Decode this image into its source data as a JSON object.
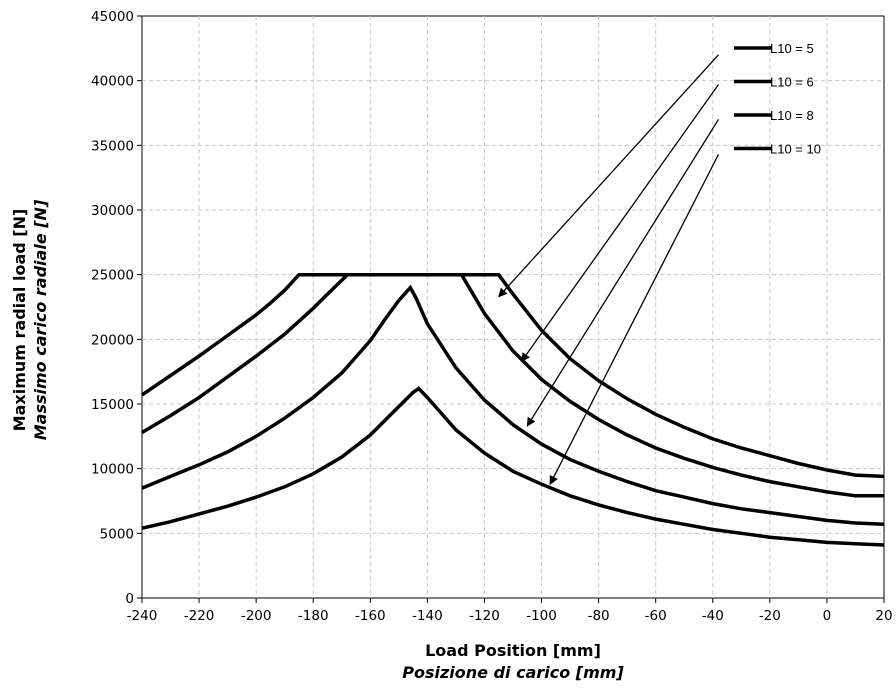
{
  "chart_data": {
    "type": "line",
    "title": "",
    "xlabel": "Load Position [mm]",
    "xlabel_secondary": "Posizione di carico [mm]",
    "ylabel": "Maximum radial load [N]",
    "ylabel_secondary": "Massimo carico radiale [N]",
    "xlim": [
      -240,
      20
    ],
    "ylim": [
      0,
      45000
    ],
    "x_ticks": [
      -240,
      -220,
      -200,
      -180,
      -160,
      -140,
      -120,
      -100,
      -80,
      -60,
      -40,
      -20,
      0,
      20
    ],
    "y_ticks": [
      0,
      5000,
      10000,
      15000,
      20000,
      25000,
      30000,
      35000,
      40000,
      45000
    ],
    "grid": true,
    "legend_position": "top-right",
    "line_color": "#000000",
    "series": [
      {
        "name": "L10 = 5",
        "x": [
          -240,
          -230,
          -220,
          -210,
          -200,
          -195,
          -190,
          -185,
          -170,
          -160,
          -150,
          -140,
          -130,
          -120,
          -115,
          -110,
          -100,
          -90,
          -80,
          -70,
          -60,
          -50,
          -40,
          -30,
          -20,
          -10,
          0,
          10,
          20
        ],
        "y": [
          15700,
          17200,
          18700,
          20300,
          21900,
          22800,
          23800,
          25000,
          25000,
          25000,
          25000,
          25000,
          25000,
          25000,
          25000,
          23500,
          20700,
          18500,
          16800,
          15400,
          14200,
          13200,
          12300,
          11600,
          11000,
          10400,
          9900,
          9500,
          9400
        ]
      },
      {
        "name": "L10 = 6",
        "x": [
          -240,
          -230,
          -220,
          -210,
          -200,
          -190,
          -180,
          -175,
          -168,
          -160,
          -150,
          -140,
          -130,
          -128,
          -120,
          -110,
          -100,
          -90,
          -80,
          -70,
          -60,
          -50,
          -40,
          -30,
          -20,
          -10,
          0,
          10,
          20
        ],
        "y": [
          12800,
          14100,
          15500,
          17100,
          18700,
          20400,
          22400,
          23500,
          25000,
          25000,
          25000,
          25000,
          25000,
          25000,
          22000,
          19100,
          16900,
          15200,
          13800,
          12600,
          11600,
          10800,
          10100,
          9500,
          9000,
          8600,
          8200,
          7900,
          7900
        ]
      },
      {
        "name": "L10 = 8",
        "x": [
          -240,
          -230,
          -220,
          -210,
          -200,
          -190,
          -180,
          -170,
          -160,
          -155,
          -150,
          -146,
          -144,
          -140,
          -130,
          -120,
          -110,
          -100,
          -90,
          -80,
          -70,
          -60,
          -50,
          -40,
          -30,
          -20,
          -10,
          0,
          10,
          20
        ],
        "y": [
          8500,
          9400,
          10300,
          11300,
          12500,
          13900,
          15500,
          17400,
          19900,
          21500,
          23000,
          24000,
          23200,
          21200,
          17800,
          15300,
          13400,
          11900,
          10700,
          9800,
          9000,
          8300,
          7800,
          7300,
          6900,
          6600,
          6300,
          6000,
          5800,
          5700
        ]
      },
      {
        "name": "L10 = 10",
        "x": [
          -240,
          -230,
          -220,
          -210,
          -200,
          -190,
          -180,
          -170,
          -160,
          -155,
          -150,
          -145,
          -143,
          -140,
          -130,
          -120,
          -110,
          -100,
          -90,
          -80,
          -70,
          -60,
          -50,
          -40,
          -30,
          -20,
          -10,
          0,
          10,
          20
        ],
        "y": [
          5400,
          5900,
          6500,
          7100,
          7800,
          8600,
          9600,
          10900,
          12600,
          13700,
          14800,
          15900,
          16200,
          15500,
          13000,
          11200,
          9800,
          8800,
          7900,
          7200,
          6600,
          6100,
          5700,
          5300,
          5000,
          4700,
          4500,
          4300,
          4200,
          4100
        ]
      }
    ],
    "annotations": [
      {
        "target_series": "L10 = 5",
        "from": [
          -38,
          42000
        ],
        "to": [
          -115,
          23300
        ]
      },
      {
        "target_series": "L10 = 6",
        "from": [
          -38,
          39700
        ],
        "to": [
          -107,
          18300
        ]
      },
      {
        "target_series": "L10 = 8",
        "from": [
          -38,
          37000
        ],
        "to": [
          -105,
          13300
        ]
      },
      {
        "target_series": "L10 = 10",
        "from": [
          -38,
          34300
        ],
        "to": [
          -97,
          8800
        ]
      }
    ]
  }
}
